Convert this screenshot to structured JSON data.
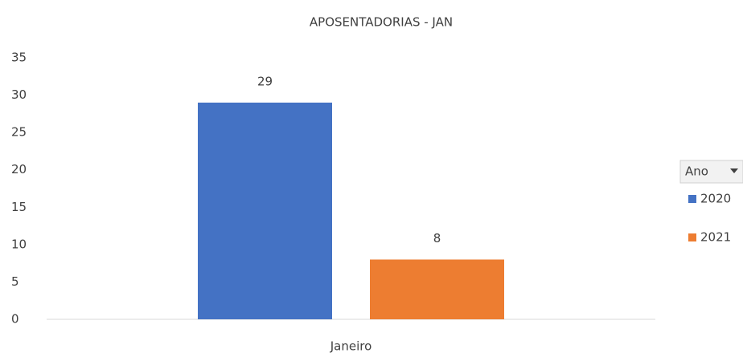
{
  "chart_data": {
    "type": "bar",
    "title": "APOSENTADORIAS - JAN",
    "categories": [
      "Janeiro"
    ],
    "series": [
      {
        "name": "2020",
        "color": "#4472c4",
        "values": [
          29
        ]
      },
      {
        "name": "2021",
        "color": "#ed7d31",
        "values": [
          8
        ]
      }
    ],
    "ylim": [
      0,
      35
    ],
    "yticks": [
      0,
      5,
      10,
      15,
      20,
      25,
      30,
      35
    ],
    "grid": false,
    "data_labels": true,
    "legend": "right",
    "legend_title": "Ano"
  }
}
